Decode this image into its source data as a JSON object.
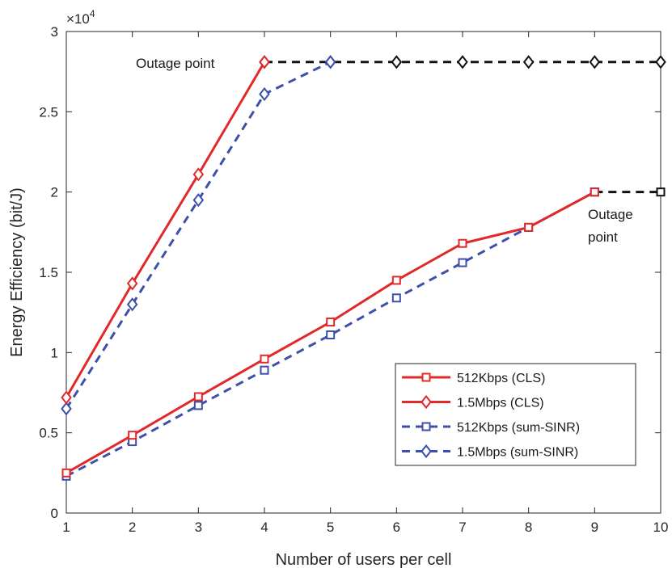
{
  "chart_data": {
    "type": "line",
    "xlabel": "Number of users per cell",
    "ylabel": "Energy Efficiency (bit/J)",
    "y_multiplier_label": "×10",
    "y_multiplier_exp": "4",
    "x": [
      1,
      2,
      3,
      4,
      5,
      6,
      7,
      8,
      9,
      10
    ],
    "xlim": [
      1,
      10
    ],
    "ylim": [
      0,
      30000
    ],
    "x_ticks": [
      1,
      2,
      3,
      4,
      5,
      6,
      7,
      8,
      9,
      10
    ],
    "y_ticks": [
      0,
      5000,
      10000,
      15000,
      20000,
      25000,
      30000
    ],
    "y_tick_labels": [
      "0",
      "0.5",
      "1",
      "1.5",
      "2",
      "2.5",
      "3"
    ],
    "grid": false,
    "legend_position": "bottom-right",
    "series": [
      {
        "name": "512Kbps (CLS)",
        "color": "#e2292a",
        "line": "solid",
        "marker": "square",
        "values": [
          2500,
          4850,
          7250,
          9600,
          11900,
          14500,
          16800,
          17800,
          20000,
          null
        ]
      },
      {
        "name": "1.5Mbps  (CLS)",
        "color": "#e2292a",
        "line": "solid",
        "marker": "diamond",
        "values": [
          7200,
          14300,
          21100,
          28100,
          null,
          null,
          null,
          null,
          null,
          null
        ]
      },
      {
        "name": "512Kbps (sum-SINR)",
        "color": "#3d4faa",
        "line": "dashed",
        "marker": "square",
        "values": [
          2300,
          4450,
          6700,
          8900,
          11100,
          13400,
          15600,
          17800,
          20000,
          null
        ]
      },
      {
        "name": "1.5Mbps (sum-SINR)",
        "color": "#3d4faa",
        "line": "dashed",
        "marker": "diamond",
        "values": [
          6500,
          13000,
          19500,
          26100,
          28100,
          null,
          null,
          null,
          null,
          null
        ]
      }
    ],
    "outage_lines": [
      {
        "color": "#111111",
        "line": "dashed",
        "marker": "diamond",
        "x": [
          4,
          5,
          6,
          7,
          8,
          9,
          10
        ],
        "y": [
          28100,
          28100,
          28100,
          28100,
          28100,
          28100,
          28100
        ]
      },
      {
        "color": "#111111",
        "line": "dashed",
        "marker": "square",
        "x": [
          9,
          10
        ],
        "y": [
          20000,
          20000
        ]
      }
    ],
    "annotations": [
      {
        "text": "Outage point",
        "lines": [
          "Outage point"
        ]
      },
      {
        "text": "Outage point",
        "lines": [
          "Outage",
          "point"
        ]
      }
    ]
  }
}
